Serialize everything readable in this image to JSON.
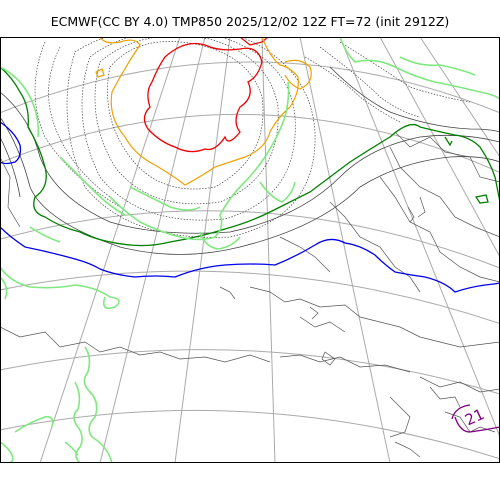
{
  "title": "ECMWF(CC BY 4.0) TMP850 2025/12/02 12Z FT=72 (init 2912Z)",
  "contour_label": "21",
  "colors": {
    "graticule": "#aaaaaa",
    "coastline": "#555555",
    "isotherm_minor": "#444444",
    "isotherm_cold_core": "#ee0000",
    "isotherm_orange": "#f0a000",
    "isotherm_green_dark": "#008000",
    "isotherm_blue": "#0000ee",
    "isotherm_light_green": "#80e880",
    "isotherm_purple": "#800080"
  }
}
